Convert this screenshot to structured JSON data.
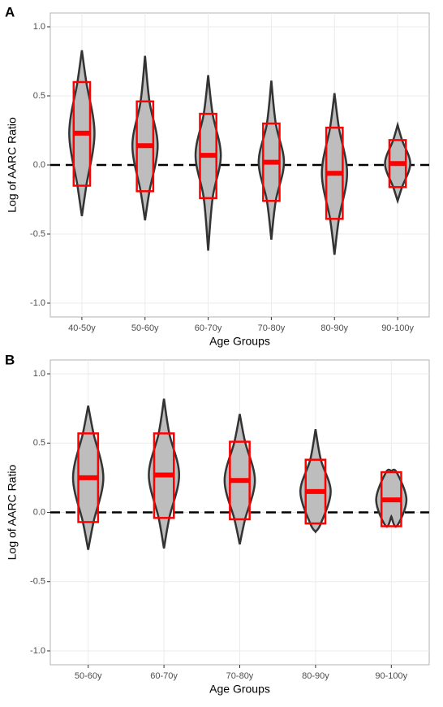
{
  "chart_data": [
    {
      "type": "violin",
      "panel": "A",
      "x_label": "Age Groups",
      "y_label": "Log of AARC Ratio",
      "categories": [
        "40-50y",
        "50-60y",
        "60-70y",
        "70-80y",
        "80-90y",
        "90-100y"
      ],
      "min": [
        -0.37,
        -0.4,
        -0.62,
        -0.54,
        -0.65,
        -0.26
      ],
      "q1": [
        -0.15,
        -0.19,
        -0.24,
        -0.26,
        -0.39,
        -0.16
      ],
      "median": [
        0.23,
        0.14,
        0.07,
        0.02,
        -0.06,
        0.01
      ],
      "q3": [
        0.6,
        0.46,
        0.37,
        0.3,
        0.27,
        0.18
      ],
      "max": [
        0.83,
        0.79,
        0.65,
        0.61,
        0.52,
        0.29
      ],
      "violin_color": "#bdbdbd",
      "box_color": "#ff0000",
      "ylim": [
        -1.1,
        1.1
      ],
      "yticks": [
        {
          "value": -1,
          "label": "-1.0"
        },
        -0.5,
        {
          "value": 0,
          "label": "0.0"
        },
        0.5,
        {
          "value": 1,
          "label": "1.0"
        }
      ],
      "hline": 0,
      "grid": true
    },
    {
      "type": "violin",
      "panel": "B",
      "x_label": "Age Groups",
      "y_label": "Log of AARC Ratio",
      "categories": [
        "50-60y",
        "60-70y",
        "70-80y",
        "80-90y",
        "90-100y"
      ],
      "min": [
        -0.27,
        -0.26,
        -0.23,
        -0.14,
        -0.03
      ],
      "q1": [
        -0.07,
        -0.04,
        -0.05,
        -0.08,
        -0.1
      ],
      "median": [
        0.25,
        0.27,
        0.23,
        0.15,
        0.09
      ],
      "q3": [
        0.57,
        0.57,
        0.51,
        0.38,
        0.29
      ],
      "max": [
        0.77,
        0.82,
        0.71,
        0.6,
        0.3
      ],
      "violin_color": "#bdbdbd",
      "box_color": "#ff0000",
      "ylim": [
        -1.1,
        1.1
      ],
      "yticks": [
        {
          "value": -1,
          "label": "-1.0"
        },
        -0.5,
        {
          "value": 0,
          "label": "0.0"
        },
        0.5,
        {
          "value": 1,
          "label": "1.0"
        }
      ],
      "hline": 0,
      "grid": true
    }
  ]
}
